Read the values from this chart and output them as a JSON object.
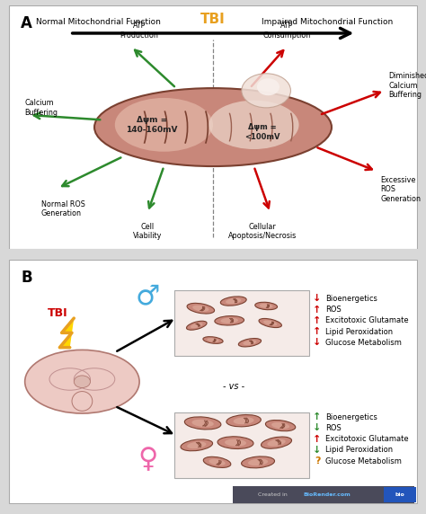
{
  "panel_A_label": "A",
  "panel_B_label": "B",
  "title_left": "Normal Mitochondrial Function",
  "title_right": "Impaired Mitochondrial Function",
  "tbi_label": "TBI",
  "tbi_color": "#E8A020",
  "left_mito_label": "Δψm =\n140-160mV",
  "right_mito_label": "Δψm =\n<100mV",
  "green_color": "#2d8a2d",
  "red_color": "#cc0000",
  "male_items": [
    {
      "arrow": "↓",
      "color": "#cc0000",
      "text": "Bioenergetics"
    },
    {
      "arrow": "↑",
      "color": "#cc0000",
      "text": "ROS"
    },
    {
      "arrow": "↑",
      "color": "#cc0000",
      "text": "Excitotoxic Glutamate"
    },
    {
      "arrow": "↑",
      "color": "#cc0000",
      "text": "Lipid Peroxidation"
    },
    {
      "arrow": "↓",
      "color": "#cc0000",
      "text": "Glucose Metabolism"
    }
  ],
  "female_items": [
    {
      "arrow": "↑",
      "color": "#2d8a2d",
      "text": "Bioenergetics"
    },
    {
      "arrow": "↓",
      "color": "#2d8a2d",
      "text": "ROS"
    },
    {
      "arrow": "↑",
      "color": "#cc0000",
      "text": "Excitotoxic Glutamate"
    },
    {
      "arrow": "↓",
      "color": "#2d8a2d",
      "text": "Lipid Peroxidation"
    },
    {
      "arrow": "?",
      "color": "#cc7700",
      "text": "Glucose Metabolism"
    }
  ],
  "vs_text": "- vs -"
}
